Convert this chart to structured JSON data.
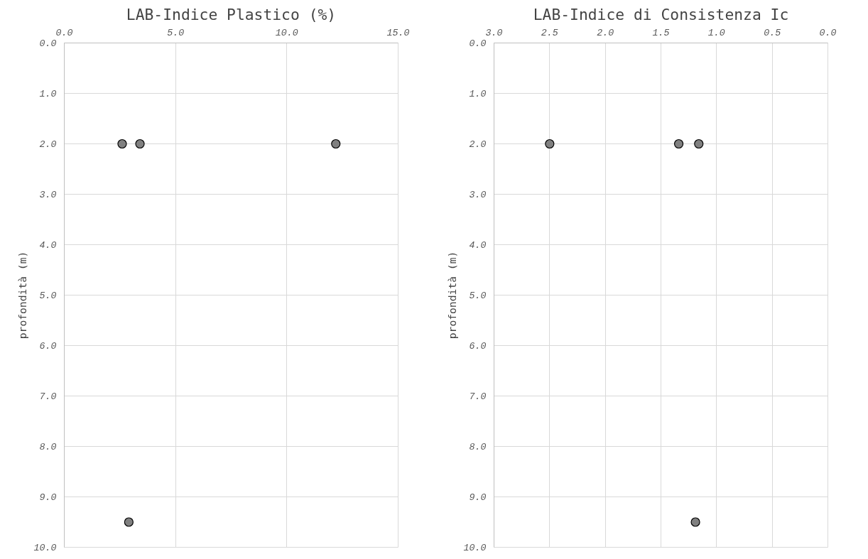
{
  "chart_data": [
    {
      "type": "scatter",
      "title": "LAB-Indice Plastico (%)",
      "ylabel": "profondità (m)",
      "marker": "circle",
      "grid": true,
      "x": [
        2.6,
        3.4,
        12.2,
        2.9
      ],
      "series": [
        {
          "color": "#808080",
          "values": [
            2.0,
            2.0,
            2.0,
            9.5
          ]
        }
      ],
      "xlim": [
        0,
        15
      ],
      "xticks": [
        {
          "value": 0,
          "label": "0.0"
        },
        {
          "value": 5,
          "label": "5.0"
        },
        {
          "value": 10,
          "label": "10.0"
        },
        {
          "value": 15,
          "label": "15.0"
        }
      ],
      "ylim": [
        10,
        0
      ],
      "yticks": [
        {
          "value": 0,
          "label": "0.0"
        },
        {
          "value": 1,
          "label": "1.0"
        },
        {
          "value": 2,
          "label": "2.0"
        },
        {
          "value": 3,
          "label": "3.0"
        },
        {
          "value": 4,
          "label": "4.0"
        },
        {
          "value": 5,
          "label": "5.0"
        },
        {
          "value": 6,
          "label": "6.0"
        },
        {
          "value": 7,
          "label": "7.0"
        },
        {
          "value": 8,
          "label": "8.0"
        },
        {
          "value": 9,
          "label": "9.0"
        },
        {
          "value": 10,
          "label": "10.0"
        }
      ]
    },
    {
      "type": "scatter",
      "title": "LAB-Indice di Consistenza Ic",
      "ylabel": "profondità (m)",
      "marker": "circle",
      "grid": true,
      "x": [
        2.5,
        1.34,
        1.16,
        1.19
      ],
      "series": [
        {
          "color": "#808080",
          "values": [
            2.0,
            2.0,
            2.0,
            9.5
          ]
        }
      ],
      "xlim": [
        3,
        0
      ],
      "xticks": [
        {
          "value": 3,
          "label": "3.0"
        },
        {
          "value": 2.5,
          "label": "2.5"
        },
        {
          "value": 2,
          "label": "2.0"
        },
        {
          "value": 1.5,
          "label": "1.5"
        },
        {
          "value": 1,
          "label": "1.0"
        },
        {
          "value": 0.5,
          "label": "0.5"
        },
        {
          "value": 0,
          "label": "0.0"
        }
      ],
      "ylim": [
        10,
        0
      ],
      "yticks": [
        {
          "value": 0,
          "label": "0.0"
        },
        {
          "value": 1,
          "label": "1.0"
        },
        {
          "value": 2,
          "label": "2.0"
        },
        {
          "value": 3,
          "label": "3.0"
        },
        {
          "value": 4,
          "label": "4.0"
        },
        {
          "value": 5,
          "label": "5.0"
        },
        {
          "value": 6,
          "label": "6.0"
        },
        {
          "value": 7,
          "label": "7.0"
        },
        {
          "value": 8,
          "label": "8.0"
        },
        {
          "value": 9,
          "label": "9.0"
        },
        {
          "value": 10,
          "label": "10.0"
        }
      ]
    }
  ]
}
